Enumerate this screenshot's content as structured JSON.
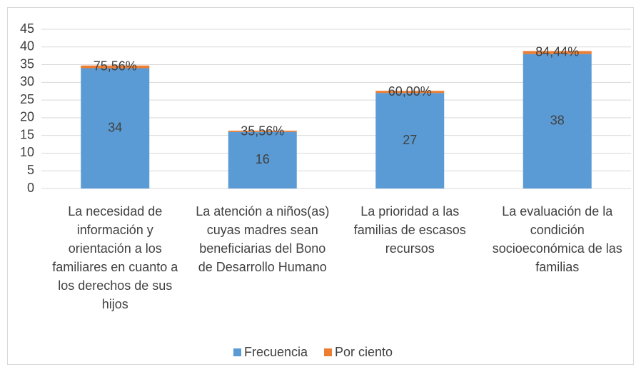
{
  "chart_data": {
    "type": "stacked_bar",
    "categories": [
      "La necesidad de información y orientación a los familiares en cuanto a los derechos de sus hijos",
      "La atención a niños(as) cuyas madres sean beneficiarias del Bono de Desarrollo Humano",
      "La prioridad a las familias de escasos recursos",
      "La evaluación de la condición socioeconómica de las familias"
    ],
    "series": [
      {
        "name": "Frecuencia",
        "color": "#5b9bd5",
        "values": [
          34,
          16,
          27,
          38
        ]
      },
      {
        "name": "Por ciento",
        "color": "#ed7d31",
        "values": [
          0.7556,
          0.3556,
          0.6,
          0.8444
        ],
        "value_labels": [
          "75,56%",
          "35,56%",
          "60,00%",
          "84,44%"
        ]
      }
    ],
    "ylim": [
      0,
      45
    ],
    "yticks": [
      0,
      5,
      10,
      15,
      20,
      25,
      30,
      35,
      40,
      45
    ],
    "grid": true,
    "legend": "bottom"
  }
}
